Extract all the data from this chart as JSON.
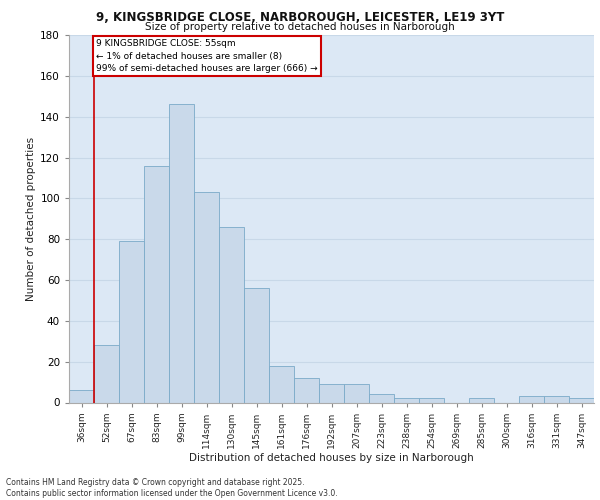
{
  "title1": "9, KINGSBRIDGE CLOSE, NARBOROUGH, LEICESTER, LE19 3YT",
  "title2": "Size of property relative to detached houses in Narborough",
  "xlabel": "Distribution of detached houses by size in Narborough",
  "ylabel": "Number of detached properties",
  "annotation_title": "9 KINGSBRIDGE CLOSE: 55sqm",
  "annotation_line2": "← 1% of detached houses are smaller (8)",
  "annotation_line3": "99% of semi-detached houses are larger (666) →",
  "categories": [
    "36sqm",
    "52sqm",
    "67sqm",
    "83sqm",
    "99sqm",
    "114sqm",
    "130sqm",
    "145sqm",
    "161sqm",
    "176sqm",
    "192sqm",
    "207sqm",
    "223sqm",
    "238sqm",
    "254sqm",
    "269sqm",
    "285sqm",
    "300sqm",
    "316sqm",
    "331sqm",
    "347sqm"
  ],
  "values": [
    6,
    28,
    79,
    116,
    146,
    103,
    86,
    56,
    18,
    12,
    9,
    9,
    4,
    2,
    2,
    0,
    2,
    0,
    3,
    3,
    2
  ],
  "bar_color": "#c9d9ea",
  "bar_edge_color": "#7aaac8",
  "annotation_box_color": "#ffffff",
  "annotation_box_edge": "#cc0000",
  "vline_color": "#cc0000",
  "grid_color": "#c8d8e8",
  "background_color": "#dce8f5",
  "ylim": [
    0,
    180
  ],
  "yticks": [
    0,
    20,
    40,
    60,
    80,
    100,
    120,
    140,
    160,
    180
  ],
  "vline_x_idx": 1.5,
  "footer1": "Contains HM Land Registry data © Crown copyright and database right 2025.",
  "footer2": "Contains public sector information licensed under the Open Government Licence v3.0."
}
